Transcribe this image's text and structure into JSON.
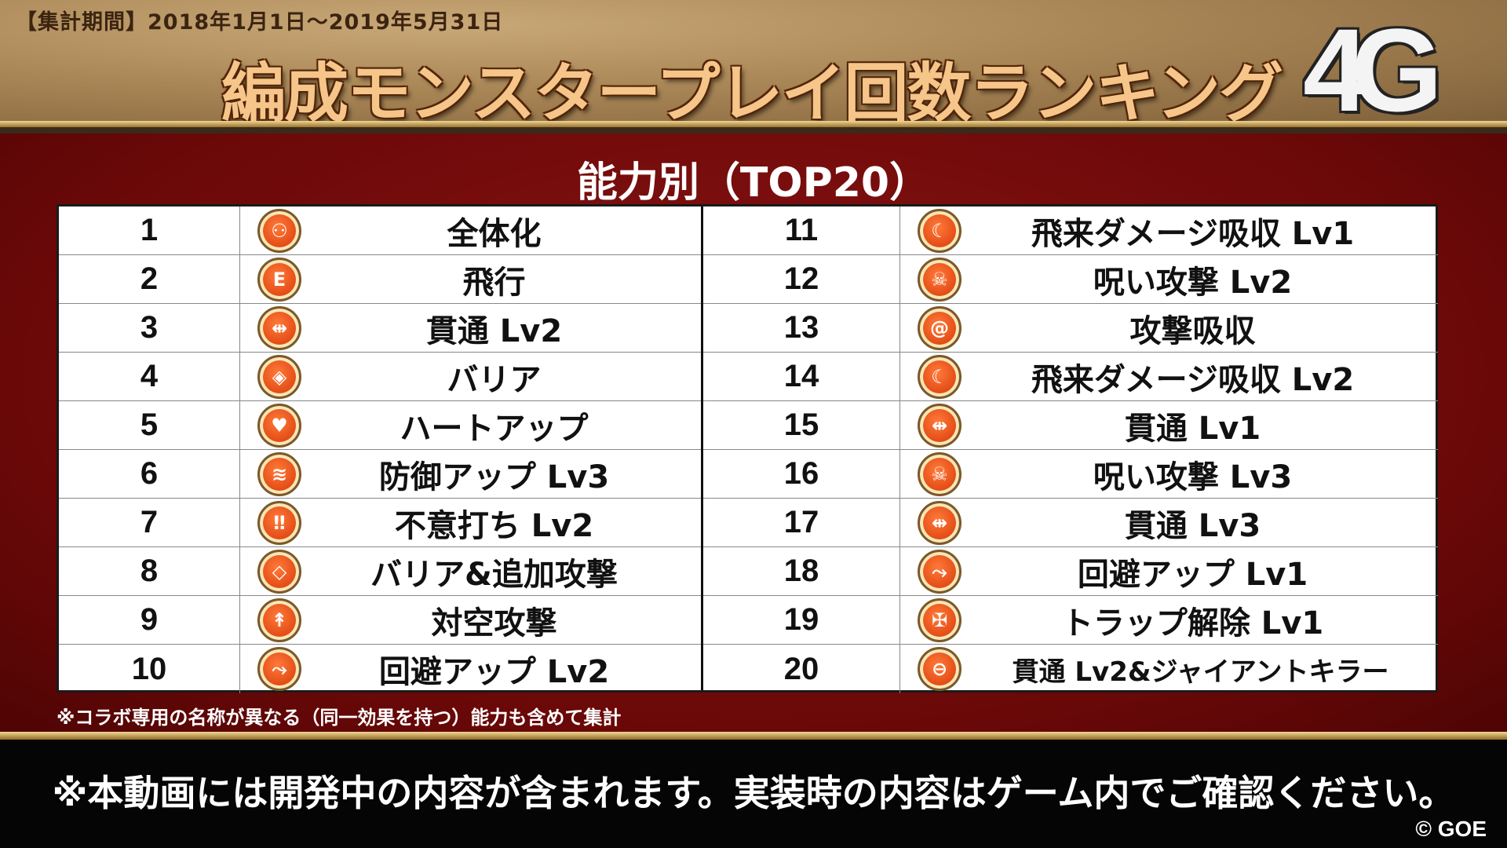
{
  "header": {
    "period": "【集計期間】2018年1月1日～2019年5月31日",
    "title": "編成モンスタープレイ回数ランキング",
    "logo": "4G"
  },
  "subtitle": "能力別（TOP20）",
  "left_rows": [
    {
      "rank": "1",
      "name": "全体化",
      "icon": "group-icon"
    },
    {
      "rank": "2",
      "name": "飛行",
      "icon": "wing-icon"
    },
    {
      "rank": "3",
      "name": "貫通 Lv2",
      "icon": "pierce-icon"
    },
    {
      "rank": "4",
      "name": "バリア",
      "icon": "shield-icon"
    },
    {
      "rank": "5",
      "name": "ハートアップ",
      "icon": "heart-icon"
    },
    {
      "rank": "6",
      "name": "防御アップ Lv3",
      "icon": "defense-icon"
    },
    {
      "rank": "7",
      "name": "不意打ち Lv2",
      "icon": "exclamation-icon"
    },
    {
      "rank": "8",
      "name": "バリア&追加攻撃",
      "icon": "shield-attack-icon"
    },
    {
      "rank": "9",
      "name": "対空攻撃",
      "icon": "anti-air-icon"
    },
    {
      "rank": "10",
      "name": "回避アップ Lv2",
      "icon": "dodge-icon"
    }
  ],
  "right_rows": [
    {
      "rank": "11",
      "name": "飛来ダメージ吸収 Lv1",
      "icon": "absorb-icon"
    },
    {
      "rank": "12",
      "name": "呪い攻撃 Lv2",
      "icon": "curse-icon"
    },
    {
      "rank": "13",
      "name": "攻撃吸収",
      "icon": "spiral-icon"
    },
    {
      "rank": "14",
      "name": "飛来ダメージ吸収 Lv2",
      "icon": "absorb-icon"
    },
    {
      "rank": "15",
      "name": "貫通 Lv1",
      "icon": "pierce-icon"
    },
    {
      "rank": "16",
      "name": "呪い攻撃 Lv3",
      "icon": "curse-icon"
    },
    {
      "rank": "17",
      "name": "貫通 Lv3",
      "icon": "pierce-icon"
    },
    {
      "rank": "18",
      "name": "回避アップ Lv1",
      "icon": "dodge-icon"
    },
    {
      "rank": "19",
      "name": "トラップ解除 Lv1",
      "icon": "trap-icon"
    },
    {
      "rank": "20",
      "name": "貫通 Lv2&ジャイアントキラー",
      "icon": "giant-killer-icon"
    }
  ],
  "note": "※コラボ専用の名称が異なる（同一効果を持つ）能力も含めて集計",
  "footer": {
    "disclaimer": "※本動画には開発中の内容が含まれます。実装時の内容はゲーム内でご確認ください。",
    "copyright": "© GOE"
  }
}
